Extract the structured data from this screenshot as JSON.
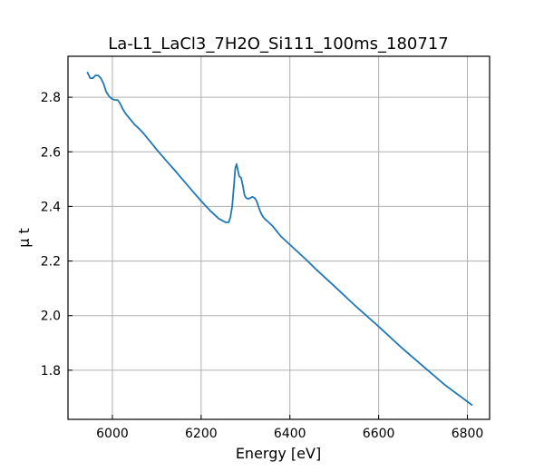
{
  "chart_data": {
    "type": "line",
    "title": "La-L1_LaCl3_7H2O_Si111_100ms_180717",
    "xlabel": "Energy [eV]",
    "ylabel": "μ t",
    "xlim": [
      5900,
      6850
    ],
    "ylim": [
      1.62,
      2.95
    ],
    "xticks": [
      6000,
      6200,
      6400,
      6600,
      6800
    ],
    "yticks": [
      1.8,
      2.0,
      2.2,
      2.4,
      2.6,
      2.8
    ],
    "xtick_labels": [
      "6000",
      "6200",
      "6400",
      "6600",
      "6800"
    ],
    "ytick_labels": [
      "1.8",
      "2.0",
      "2.2",
      "2.4",
      "2.6",
      "2.8"
    ],
    "grid": true,
    "series_color": "#1f77b4",
    "series": [
      {
        "x": [
          5944,
          5950,
          5956,
          5962,
          5968,
          5974,
          5980,
          5986,
          5992,
          5998,
          6005,
          6012,
          6018,
          6024,
          6030,
          6040,
          6050,
          6060,
          6070,
          6080,
          6090,
          6100,
          6120,
          6140,
          6160,
          6180,
          6200,
          6220,
          6240,
          6255,
          6262,
          6266,
          6270,
          6274,
          6277,
          6280,
          6283,
          6286,
          6290,
          6294,
          6298,
          6302,
          6306,
          6310,
          6315,
          6320,
          6325,
          6330,
          6335,
          6340,
          6345,
          6350,
          6360,
          6370,
          6380,
          6390,
          6400,
          6420,
          6440,
          6460,
          6480,
          6500,
          6550,
          6600,
          6650,
          6700,
          6750,
          6810
        ],
        "y": [
          2.89,
          2.87,
          2.87,
          2.88,
          2.88,
          2.87,
          2.85,
          2.82,
          2.805,
          2.795,
          2.79,
          2.79,
          2.775,
          2.755,
          2.74,
          2.72,
          2.7,
          2.685,
          2.668,
          2.648,
          2.628,
          2.608,
          2.57,
          2.533,
          2.495,
          2.457,
          2.42,
          2.385,
          2.355,
          2.342,
          2.342,
          2.36,
          2.4,
          2.48,
          2.54,
          2.555,
          2.53,
          2.51,
          2.505,
          2.475,
          2.44,
          2.43,
          2.428,
          2.43,
          2.435,
          2.432,
          2.42,
          2.395,
          2.375,
          2.36,
          2.352,
          2.345,
          2.33,
          2.31,
          2.29,
          2.275,
          2.26,
          2.23,
          2.2,
          2.168,
          2.138,
          2.108,
          2.032,
          1.96,
          1.885,
          1.815,
          1.745,
          1.673
        ]
      }
    ]
  }
}
